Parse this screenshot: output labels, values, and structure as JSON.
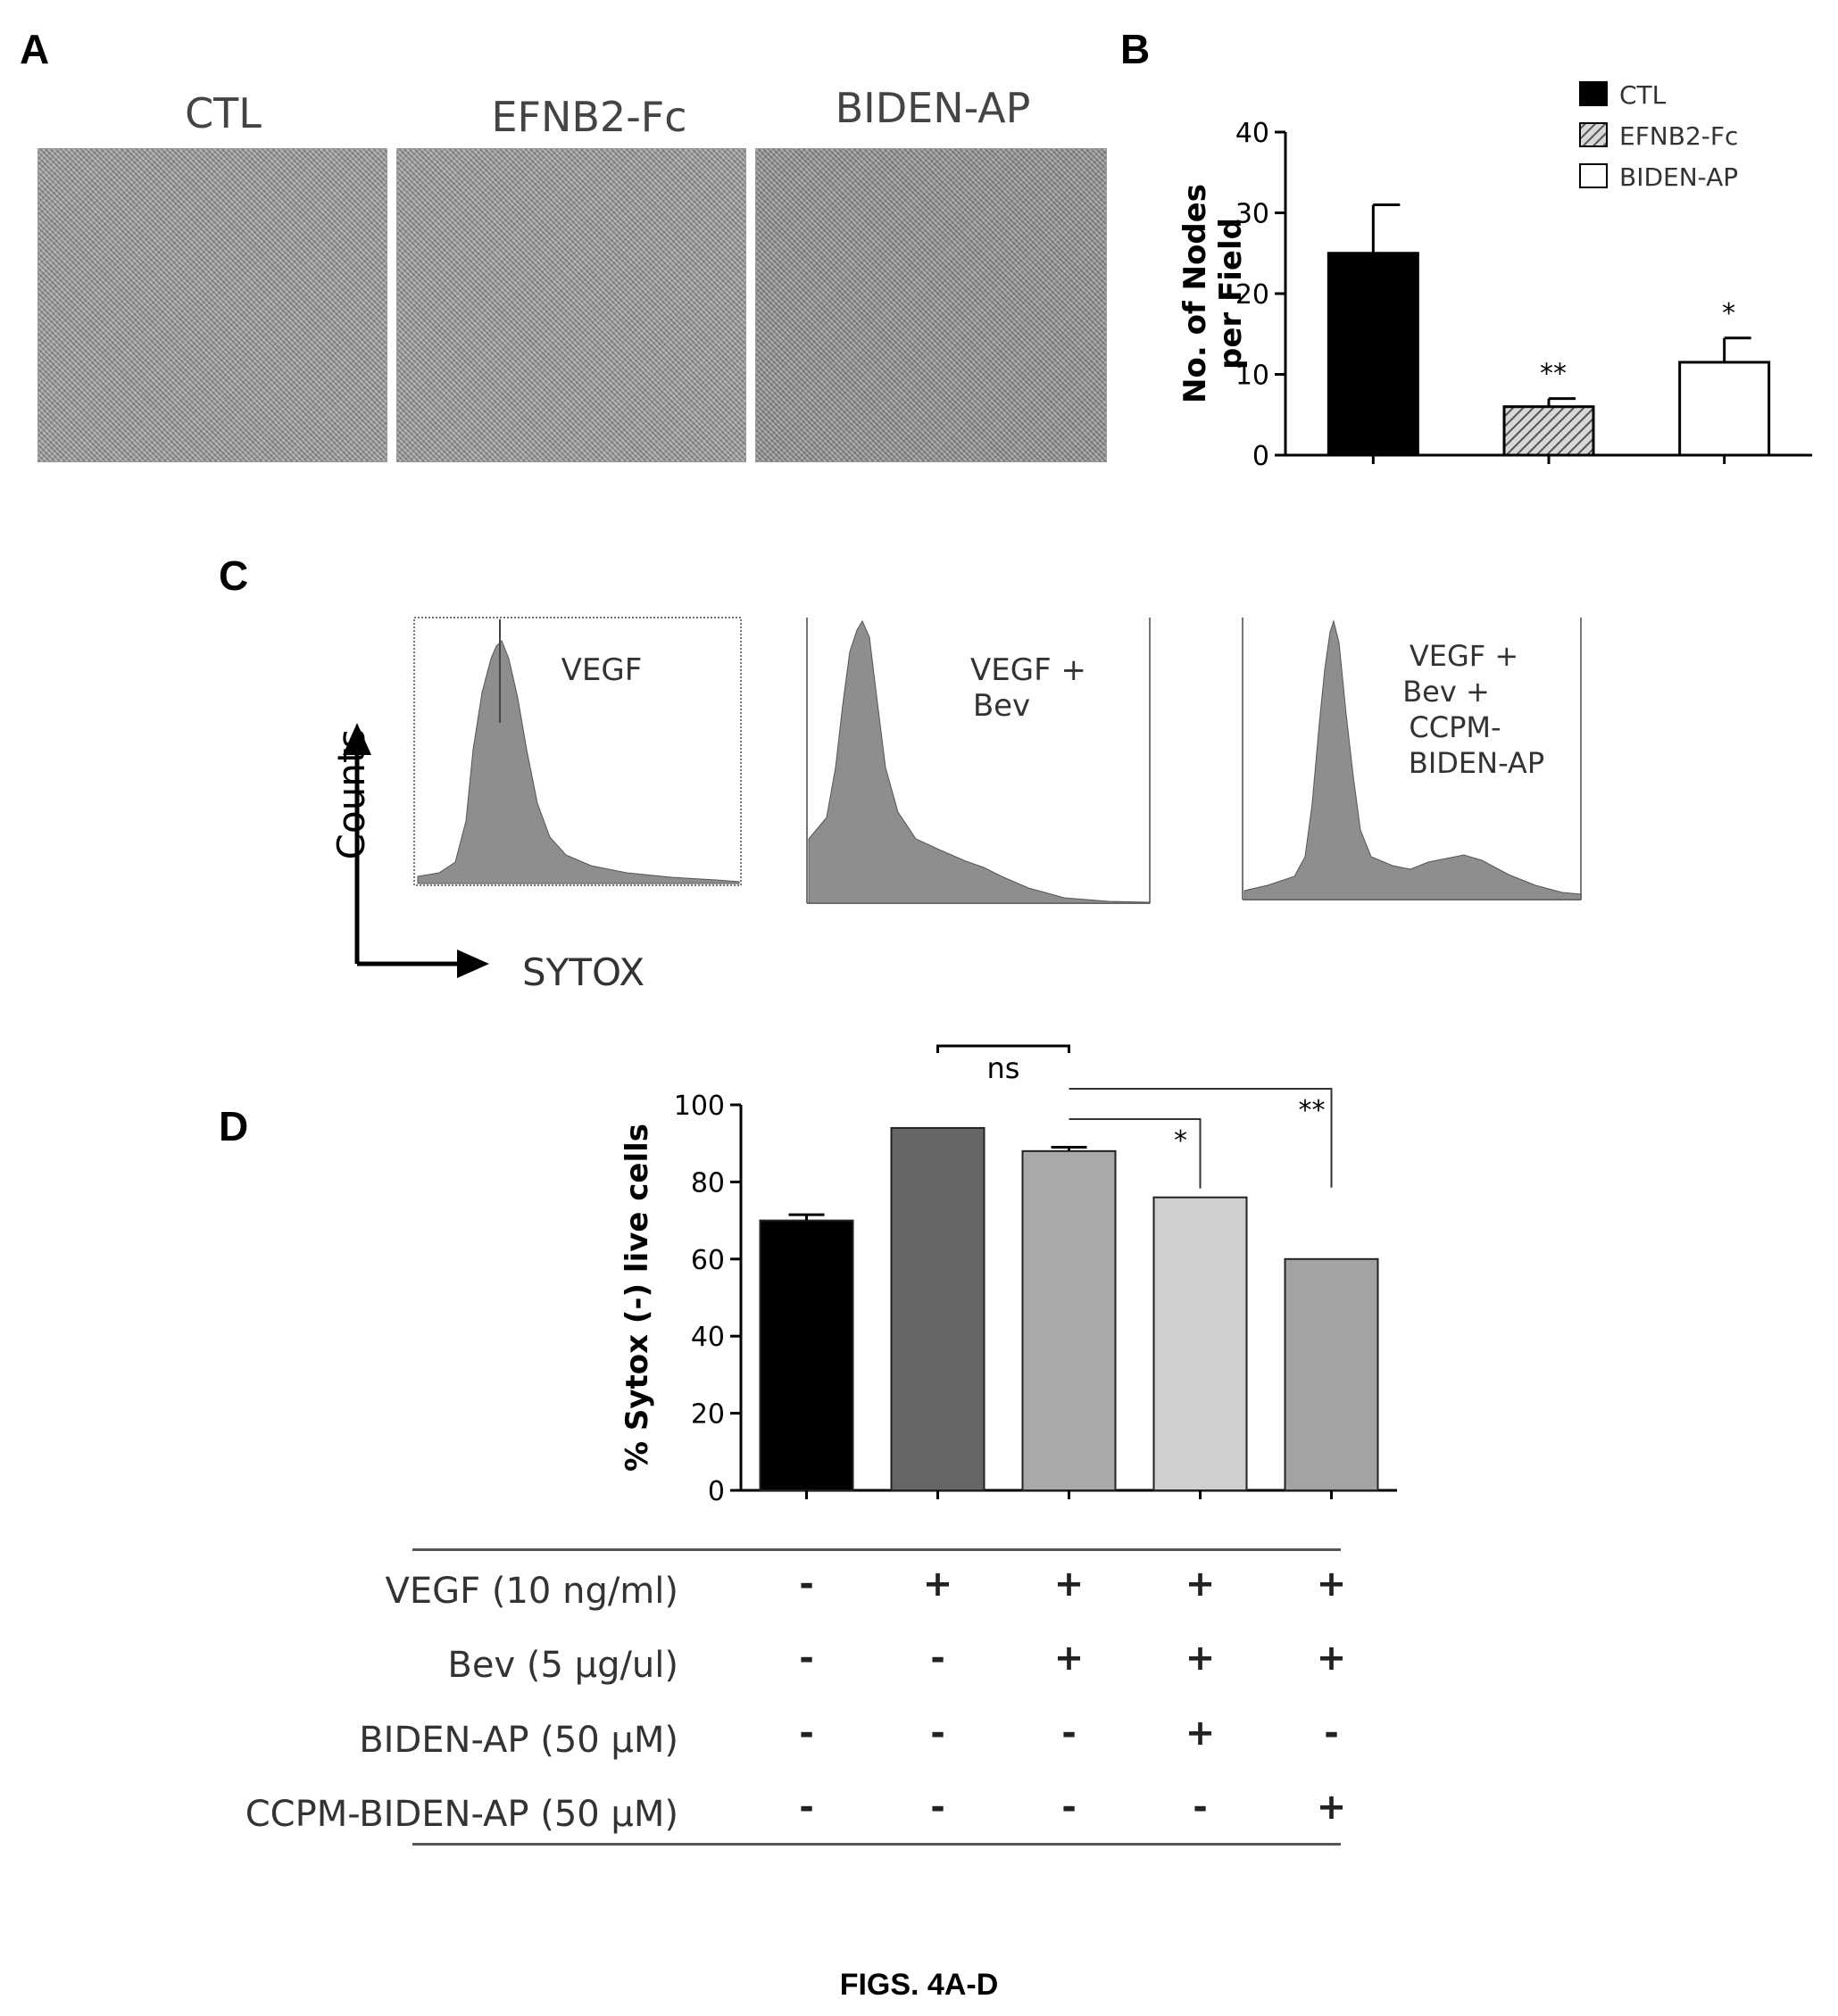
{
  "figure_caption": "FIGS. 4A-D",
  "panel_a": {
    "letter": "A",
    "images": [
      {
        "label": "CTL"
      },
      {
        "label": "EFNB2-Fc"
      },
      {
        "label": "BIDEN-AP"
      }
    ]
  },
  "panel_b": {
    "letter": "B"
  },
  "panel_c": {
    "letter": "C",
    "y_axis_label": "Counts",
    "x_axis_label": "SYTOX",
    "histograms": [
      {
        "label_lines": [
          "VEGF"
        ]
      },
      {
        "label_lines": [
          "VEGF +",
          "Bev"
        ]
      },
      {
        "label_lines": [
          "VEGF +",
          "Bev +",
          "CCPM-",
          "BIDEN-AP"
        ]
      }
    ]
  },
  "panel_d": {
    "letter": "D",
    "conditions": [
      {
        "label": "VEGF (10 ng/ml)",
        "signs": [
          "-",
          "+",
          "+",
          "+",
          "+"
        ]
      },
      {
        "label": "Bev (5 µg/ul)",
        "signs": [
          "-",
          "-",
          "+",
          "+",
          "+"
        ]
      },
      {
        "label": "BIDEN-AP (50 µM)",
        "signs": [
          "-",
          "-",
          "-",
          "+",
          "-"
        ]
      },
      {
        "label": "CCPM-BIDEN-AP (50 µM)",
        "signs": [
          "-",
          "-",
          "-",
          "-",
          "+"
        ]
      }
    ]
  },
  "chart_data": [
    {
      "panel": "B",
      "type": "bar",
      "ylabel_lines": [
        "No. of Nodes",
        "per Field"
      ],
      "ylim": [
        0,
        40
      ],
      "yticks": [
        0,
        10,
        20,
        30,
        40
      ],
      "categories": [
        "CTL",
        "EFNB2-Fc",
        "BIDEN-AP"
      ],
      "values": [
        25,
        6,
        11.5
      ],
      "errors": [
        6,
        1,
        3
      ],
      "significance": [
        "",
        "**",
        "*"
      ],
      "fills": [
        "#000000",
        "hatched-grey",
        "#ffffff"
      ],
      "legend": [
        "CTL",
        "EFNB2-Fc",
        "BIDEN-AP"
      ],
      "legend_position": "top-right"
    },
    {
      "panel": "D",
      "type": "bar",
      "ylabel": "% Sytox (-) live cells",
      "ylim": [
        0,
        100
      ],
      "yticks": [
        0,
        20,
        40,
        60,
        80,
        100
      ],
      "values": [
        70,
        94,
        88,
        76,
        60
      ],
      "errors": [
        1.5,
        0,
        1,
        0,
        0
      ],
      "fills": [
        "#000000",
        "#666666",
        "#a9a9a9",
        "#cfcfcf",
        "#a3a3a3"
      ],
      "brackets": [
        {
          "from": 1,
          "to": 2,
          "label": "ns"
        },
        {
          "from": 2,
          "to": 3,
          "label": "*"
        },
        {
          "from": 2,
          "to": 4,
          "label": "**"
        }
      ]
    }
  ]
}
